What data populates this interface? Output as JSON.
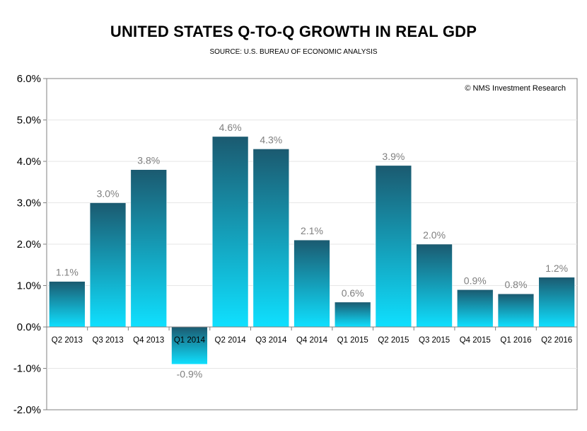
{
  "chart_data": {
    "type": "bar",
    "title": "UNITED STATES Q-TO-Q GROWTH IN REAL GDP",
    "subtitle": "SOURCE: U.S. BUREAU OF ECONOMIC ANALYSIS",
    "annotation": "© NMS Investment Research",
    "categories": [
      "Q2 2013",
      "Q3 2013",
      "Q4 2013",
      "Q1 2014",
      "Q2 2014",
      "Q3 2014",
      "Q4 2014",
      "Q1 2015",
      "Q2 2015",
      "Q3 2015",
      "Q4 2015",
      "Q1 2016",
      "Q2 2016"
    ],
    "values": [
      1.1,
      3.0,
      3.8,
      -0.9,
      4.6,
      4.3,
      2.1,
      0.6,
      3.9,
      2.0,
      0.9,
      0.8,
      1.2
    ],
    "data_labels": [
      "1.1%",
      "3.0%",
      "3.8%",
      "-0.9%",
      "4.6%",
      "4.3%",
      "2.1%",
      "0.6%",
      "3.9%",
      "2.0%",
      "0.9%",
      "0.8%",
      "1.2%"
    ],
    "ylim": [
      -2.0,
      6.0
    ],
    "yticks": [
      6.0,
      5.0,
      4.0,
      3.0,
      2.0,
      1.0,
      0.0,
      -1.0,
      -2.0
    ],
    "ytick_labels": [
      "6.0%",
      "5.0%",
      "4.0%",
      "3.0%",
      "2.0%",
      "1.0%",
      "0.0%",
      "-1.0%",
      "-2.0%"
    ],
    "xlabel": "",
    "ylabel": "",
    "grid": true,
    "legend": "none",
    "colors": {
      "bar_top": "#1b5a70",
      "bar_bottom": "#0fe0ff",
      "data_label": "#7f7f7f",
      "grid": "#e6e6e6"
    }
  }
}
